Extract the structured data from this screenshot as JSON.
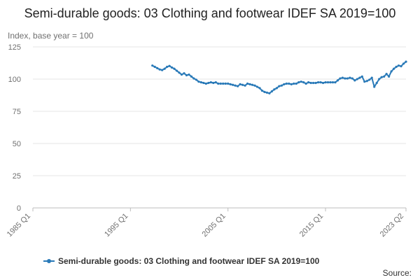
{
  "chart_data": {
    "type": "line",
    "title": "Semi-durable goods: 03 Clothing and footwear IDEF SA 2019=100",
    "ylabel": "Index, base year = 100",
    "xlabel": "",
    "ylim": [
      0,
      125
    ],
    "yticks": [
      "0",
      "25",
      "50",
      "75",
      "100",
      "125"
    ],
    "x_range": [
      "1985 Q1",
      "2023 Q2"
    ],
    "xticks": [
      "1985 Q1",
      "1995 Q1",
      "2005 Q1",
      "2015 Q1",
      "2023 Q2"
    ],
    "grid": "horizontal",
    "legend_position": "bottom",
    "series": [
      {
        "name": "Semi-durable goods: 03 Clothing and footwear IDEF SA 2019=100",
        "color": "#2a7ab8",
        "points": [
          [
            "1997 Q2",
            110.5
          ],
          [
            "1997 Q3",
            109.5
          ],
          [
            "1997 Q4",
            108.5
          ],
          [
            "1998 Q1",
            107.5
          ],
          [
            "1998 Q2",
            107.0
          ],
          [
            "1998 Q3",
            108.0
          ],
          [
            "1998 Q4",
            109.5
          ],
          [
            "1999 Q1",
            110.2
          ],
          [
            "1999 Q2",
            109.0
          ],
          [
            "1999 Q3",
            108.0
          ],
          [
            "1999 Q4",
            106.5
          ],
          [
            "2000 Q1",
            105.0
          ],
          [
            "2000 Q2",
            103.5
          ],
          [
            "2000 Q3",
            104.5
          ],
          [
            "2000 Q4",
            103.0
          ],
          [
            "2001 Q1",
            103.5
          ],
          [
            "2001 Q2",
            102.0
          ],
          [
            "2001 Q3",
            100.5
          ],
          [
            "2001 Q4",
            99.5
          ],
          [
            "2002 Q1",
            98.0
          ],
          [
            "2002 Q2",
            97.5
          ],
          [
            "2002 Q3",
            97.0
          ],
          [
            "2002 Q4",
            96.5
          ],
          [
            "2003 Q1",
            97.0
          ],
          [
            "2003 Q2",
            97.5
          ],
          [
            "2003 Q3",
            97.0
          ],
          [
            "2003 Q4",
            97.5
          ],
          [
            "2004 Q1",
            96.5
          ],
          [
            "2004 Q2",
            96.5
          ],
          [
            "2004 Q3",
            96.5
          ],
          [
            "2004 Q4",
            96.5
          ],
          [
            "2005 Q1",
            96.5
          ],
          [
            "2005 Q2",
            96.0
          ],
          [
            "2005 Q3",
            95.5
          ],
          [
            "2005 Q4",
            95.0
          ],
          [
            "2006 Q1",
            94.5
          ],
          [
            "2006 Q2",
            96.0
          ],
          [
            "2006 Q3",
            95.5
          ],
          [
            "2006 Q4",
            95.0
          ],
          [
            "2007 Q1",
            96.5
          ],
          [
            "2007 Q2",
            96.0
          ],
          [
            "2007 Q3",
            95.5
          ],
          [
            "2007 Q4",
            95.0
          ],
          [
            "2008 Q1",
            94.0
          ],
          [
            "2008 Q2",
            93.0
          ],
          [
            "2008 Q3",
            91.0
          ],
          [
            "2008 Q4",
            90.0
          ],
          [
            "2009 Q1",
            89.5
          ],
          [
            "2009 Q2",
            89.0
          ],
          [
            "2009 Q3",
            90.5
          ],
          [
            "2009 Q4",
            92.0
          ],
          [
            "2010 Q1",
            93.0
          ],
          [
            "2010 Q2",
            94.5
          ],
          [
            "2010 Q3",
            95.0
          ],
          [
            "2010 Q4",
            96.0
          ],
          [
            "2011 Q1",
            96.5
          ],
          [
            "2011 Q2",
            96.5
          ],
          [
            "2011 Q3",
            96.0
          ],
          [
            "2011 Q4",
            96.5
          ],
          [
            "2012 Q1",
            96.5
          ],
          [
            "2012 Q2",
            97.5
          ],
          [
            "2012 Q3",
            98.0
          ],
          [
            "2012 Q4",
            97.5
          ],
          [
            "2013 Q1",
            96.5
          ],
          [
            "2013 Q2",
            97.5
          ],
          [
            "2013 Q3",
            97.0
          ],
          [
            "2013 Q4",
            97.0
          ],
          [
            "2014 Q1",
            97.0
          ],
          [
            "2014 Q2",
            97.5
          ],
          [
            "2014 Q3",
            97.5
          ],
          [
            "2014 Q4",
            97.0
          ],
          [
            "2015 Q1",
            97.5
          ],
          [
            "2015 Q2",
            97.5
          ],
          [
            "2015 Q3",
            97.5
          ],
          [
            "2015 Q4",
            97.5
          ],
          [
            "2016 Q1",
            97.5
          ],
          [
            "2016 Q2",
            99.0
          ],
          [
            "2016 Q3",
            100.5
          ],
          [
            "2016 Q4",
            101.0
          ],
          [
            "2017 Q1",
            100.5
          ],
          [
            "2017 Q2",
            100.5
          ],
          [
            "2017 Q3",
            101.0
          ],
          [
            "2017 Q4",
            100.5
          ],
          [
            "2018 Q1",
            99.0
          ],
          [
            "2018 Q2",
            100.0
          ],
          [
            "2018 Q3",
            101.0
          ],
          [
            "2018 Q4",
            102.0
          ],
          [
            "2019 Q1",
            98.0
          ],
          [
            "2019 Q2",
            98.5
          ],
          [
            "2019 Q3",
            99.5
          ],
          [
            "2019 Q4",
            101.0
          ],
          [
            "2020 Q1",
            94.0
          ],
          [
            "2020 Q2",
            97.0
          ],
          [
            "2020 Q3",
            100.0
          ],
          [
            "2020 Q4",
            101.5
          ],
          [
            "2021 Q1",
            102.0
          ],
          [
            "2021 Q2",
            104.0
          ],
          [
            "2021 Q3",
            102.0
          ],
          [
            "2021 Q4",
            106.0
          ],
          [
            "2022 Q1",
            108.0
          ],
          [
            "2022 Q2",
            109.5
          ],
          [
            "2022 Q3",
            110.5
          ],
          [
            "2022 Q4",
            110.0
          ],
          [
            "2023 Q1",
            112.0
          ],
          [
            "2023 Q2",
            113.5
          ]
        ]
      }
    ]
  },
  "footer": {
    "source_label": "Source:"
  }
}
